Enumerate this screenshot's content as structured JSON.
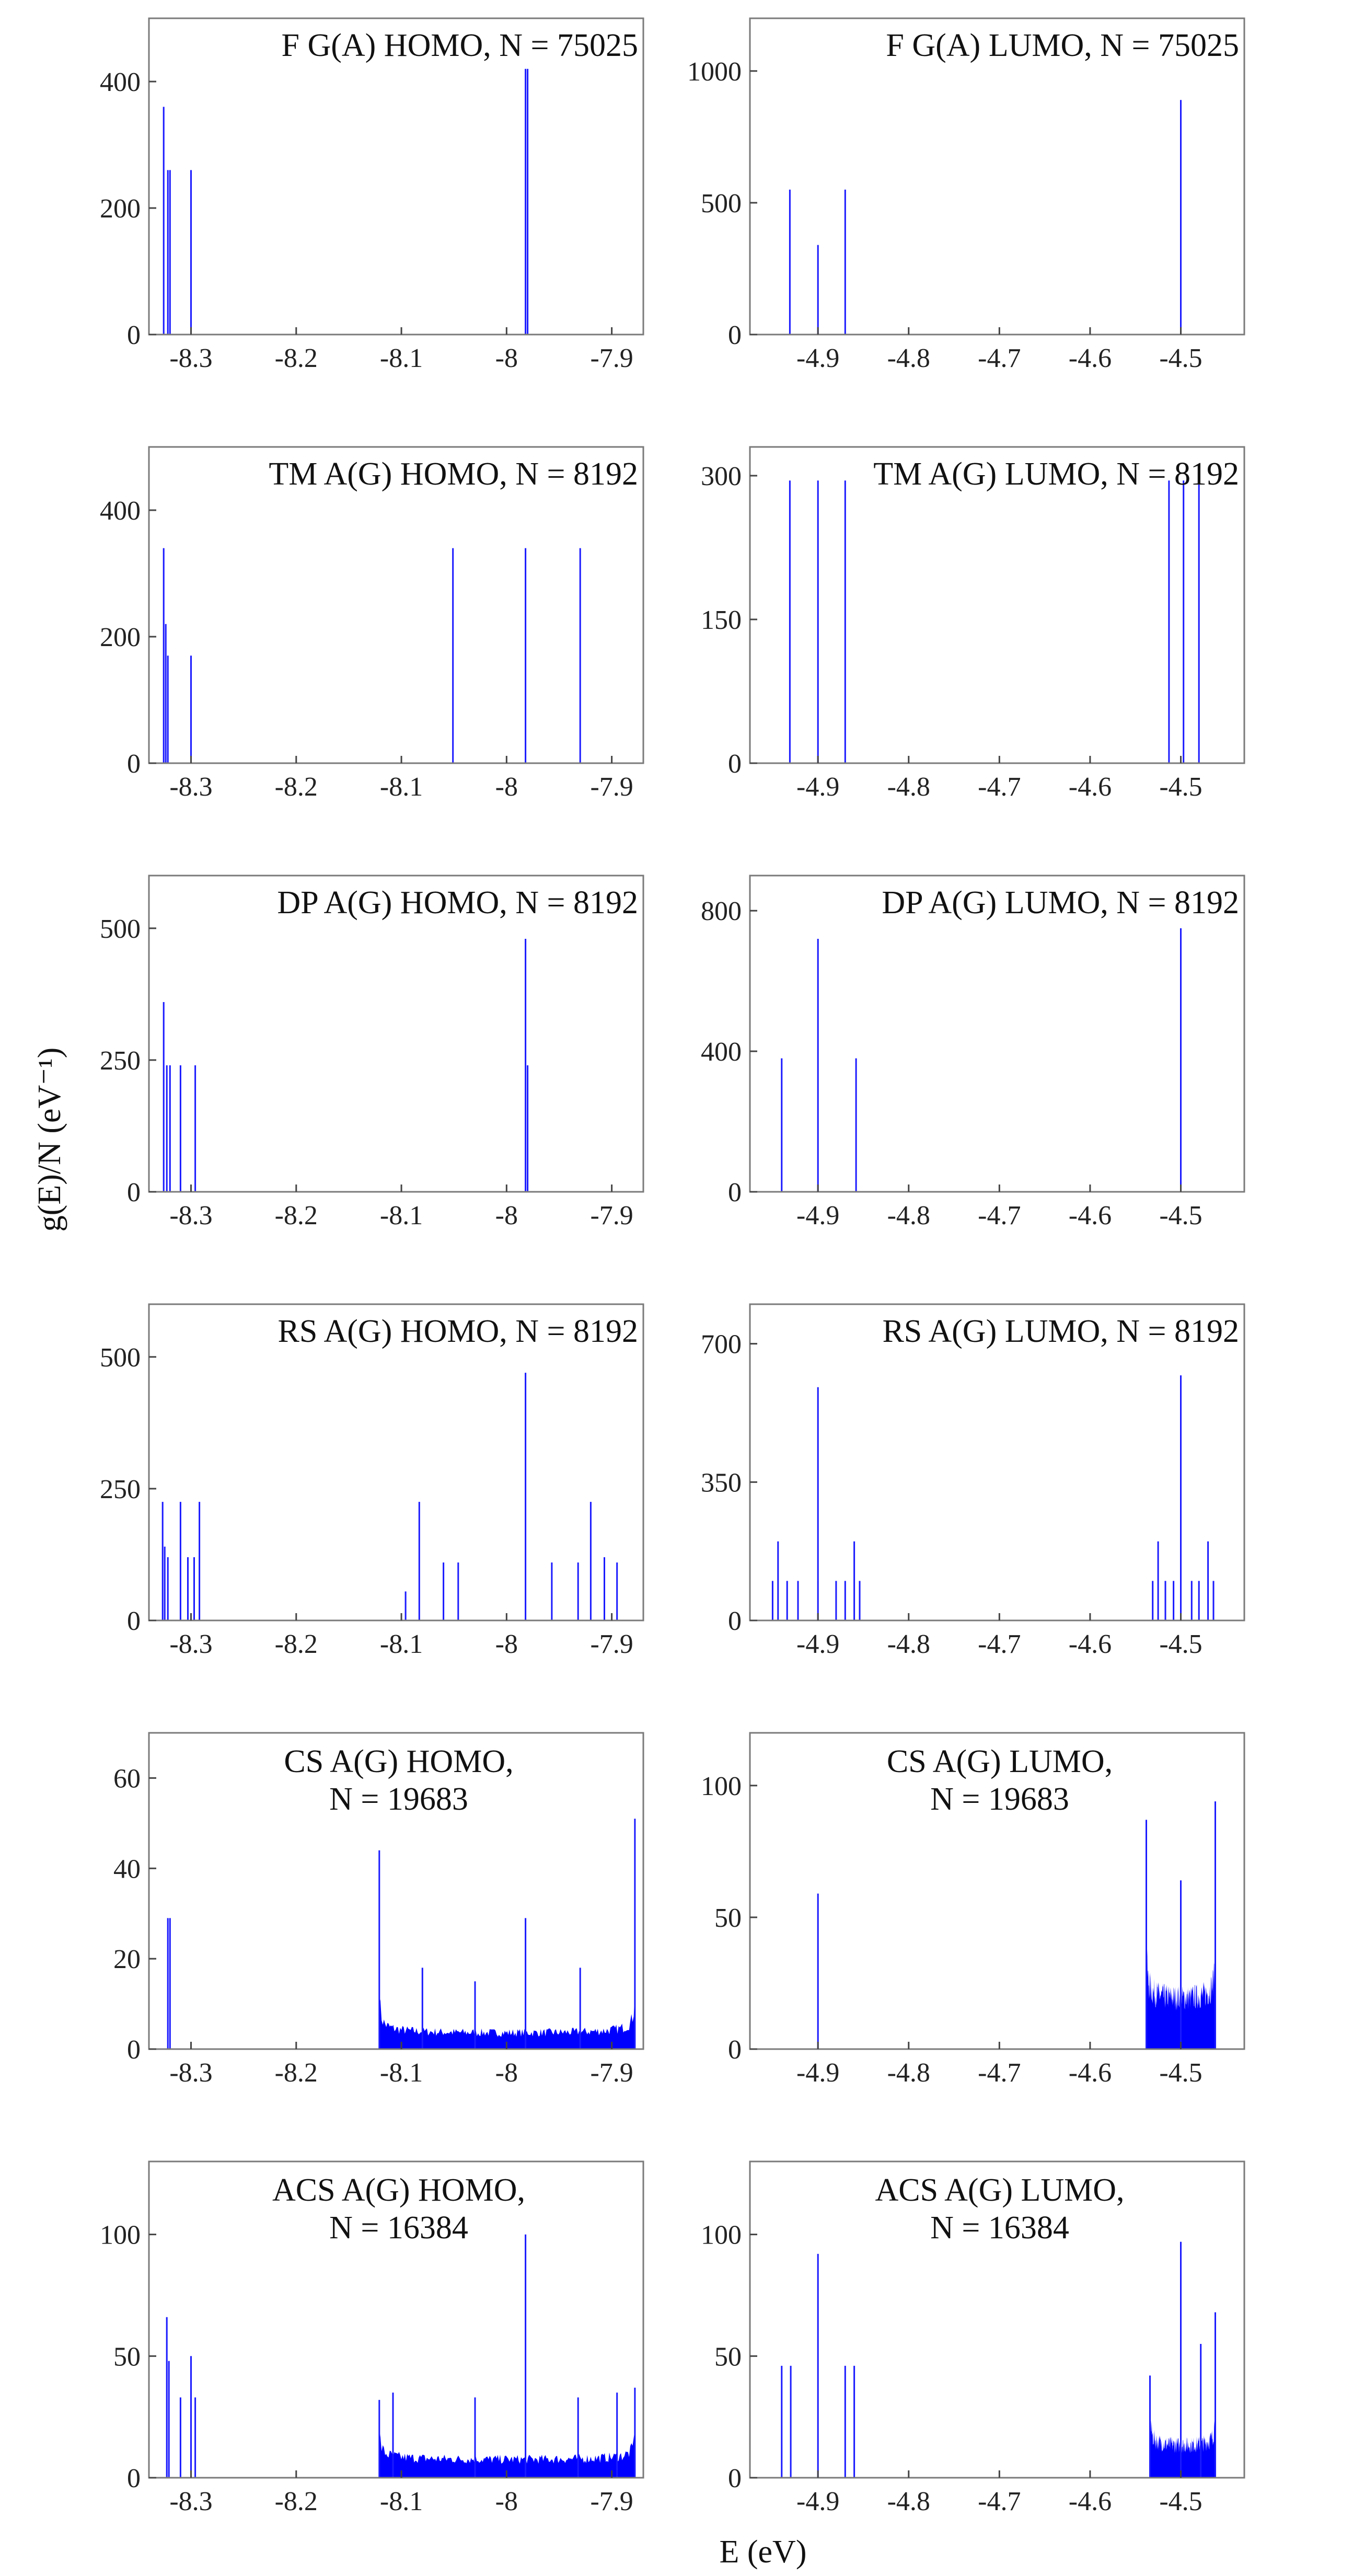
{
  "figure": {
    "ylabel": "g(E)/N (eV⁻¹)",
    "xlabel": "E (eV)",
    "colors": {
      "trace": "#0000ff",
      "frame": "#7a7a7a"
    }
  },
  "chart_data": [
    {
      "type": "bar",
      "title": [
        "F G(A) HOMO, N = 75025"
      ],
      "xlim": [
        -8.34,
        -7.87
      ],
      "ylim": [
        0,
        500
      ],
      "xticks": [
        -8.3,
        -8.2,
        -8.1,
        -8.0,
        -7.9
      ],
      "xtick_labels": [
        "-8.3",
        "-8.2",
        "-8.1",
        "-8",
        "-7.9"
      ],
      "yticks": [
        0,
        200,
        400
      ],
      "x": [
        -8.326,
        -8.322,
        -8.32,
        -8.3,
        -7.982,
        -7.98
      ],
      "values": [
        360,
        260,
        260,
        260,
        420,
        420
      ]
    },
    {
      "type": "bar",
      "title": [
        "F G(A) LUMO, N = 75025"
      ],
      "xlim": [
        -4.975,
        -4.43
      ],
      "ylim": [
        0,
        1200
      ],
      "xticks": [
        -4.9,
        -4.8,
        -4.7,
        -4.6,
        -4.5
      ],
      "xtick_labels": [
        "-4.9",
        "-4.8",
        "-4.7",
        "-4.6",
        "-4.5"
      ],
      "yticks": [
        0,
        500,
        1000
      ],
      "x": [
        -4.931,
        -4.9,
        -4.87,
        -4.5
      ],
      "values": [
        550,
        340,
        550,
        890
      ]
    },
    {
      "type": "bar",
      "title": [
        "TM A(G) HOMO, N = 8192"
      ],
      "xlim": [
        -8.34,
        -7.87
      ],
      "ylim": [
        0,
        500
      ],
      "xticks": [
        -8.3,
        -8.2,
        -8.1,
        -8.0,
        -7.9
      ],
      "xtick_labels": [
        "-8.3",
        "-8.2",
        "-8.1",
        "-8",
        "-7.9"
      ],
      "yticks": [
        0,
        200,
        400
      ],
      "x": [
        -8.326,
        -8.324,
        -8.322,
        -8.3,
        -8.051,
        -7.982,
        -7.93
      ],
      "values": [
        340,
        220,
        170,
        170,
        340,
        340,
        340
      ]
    },
    {
      "type": "bar",
      "title": [
        "TM A(G) LUMO, N = 8192"
      ],
      "xlim": [
        -4.975,
        -4.43
      ],
      "ylim": [
        0,
        330
      ],
      "xticks": [
        -4.9,
        -4.8,
        -4.7,
        -4.6,
        -4.5
      ],
      "xtick_labels": [
        "-4.9",
        "-4.8",
        "-4.7",
        "-4.6",
        "-4.5"
      ],
      "yticks": [
        0,
        150,
        300
      ],
      "x": [
        -4.931,
        -4.9,
        -4.87,
        -4.513,
        -4.497,
        -4.48
      ],
      "values": [
        295,
        295,
        295,
        295,
        295,
        295
      ]
    },
    {
      "type": "bar",
      "title": [
        "DP A(G) HOMO, N = 8192"
      ],
      "xlim": [
        -8.34,
        -7.87
      ],
      "ylim": [
        0,
        600
      ],
      "xticks": [
        -8.3,
        -8.2,
        -8.1,
        -8.0,
        -7.9
      ],
      "xtick_labels": [
        "-8.3",
        "-8.2",
        "-8.1",
        "-8",
        "-7.9"
      ],
      "yticks": [
        0,
        250,
        500
      ],
      "x": [
        -8.326,
        -8.323,
        -8.32,
        -8.31,
        -8.296,
        -7.982,
        -7.98
      ],
      "values": [
        360,
        240,
        240,
        240,
        240,
        480,
        240
      ]
    },
    {
      "type": "bar",
      "title": [
        "DP A(G) LUMO, N = 8192"
      ],
      "xlim": [
        -4.975,
        -4.43
      ],
      "ylim": [
        0,
        900
      ],
      "xticks": [
        -4.9,
        -4.8,
        -4.7,
        -4.6,
        -4.5
      ],
      "xtick_labels": [
        "-4.9",
        "-4.8",
        "-4.7",
        "-4.6",
        "-4.5"
      ],
      "yticks": [
        0,
        400,
        800
      ],
      "x": [
        -4.94,
        -4.9,
        -4.858,
        -4.5
      ],
      "values": [
        380,
        720,
        380,
        750
      ]
    },
    {
      "type": "bar",
      "title": [
        "RS A(G) HOMO, N = 8192"
      ],
      "xlim": [
        -8.34,
        -7.87
      ],
      "ylim": [
        0,
        600
      ],
      "xticks": [
        -8.3,
        -8.2,
        -8.1,
        -8.0,
        -7.9
      ],
      "xtick_labels": [
        "-8.3",
        "-8.2",
        "-8.1",
        "-8",
        "-7.9"
      ],
      "yticks": [
        0,
        250,
        500
      ],
      "x": [
        -8.327,
        -8.325,
        -8.322,
        -8.31,
        -8.303,
        -8.297,
        -8.292,
        -8.096,
        -8.083,
        -8.06,
        -8.046,
        -7.982,
        -7.957,
        -7.932,
        -7.92,
        -7.907,
        -7.895
      ],
      "values": [
        225,
        140,
        120,
        225,
        120,
        120,
        225,
        55,
        225,
        110,
        110,
        470,
        110,
        110,
        225,
        120,
        110
      ]
    },
    {
      "type": "bar",
      "title": [
        "RS A(G) LUMO, N = 8192"
      ],
      "xlim": [
        -4.975,
        -4.43
      ],
      "ylim": [
        0,
        800
      ],
      "xticks": [
        -4.9,
        -4.8,
        -4.7,
        -4.6,
        -4.5
      ],
      "xtick_labels": [
        "-4.9",
        "-4.8",
        "-4.7",
        "-4.6",
        "-4.5"
      ],
      "yticks": [
        0,
        350,
        700
      ],
      "x": [
        -4.95,
        -4.944,
        -4.934,
        -4.922,
        -4.9,
        -4.88,
        -4.87,
        -4.86,
        -4.854,
        -4.531,
        -4.525,
        -4.517,
        -4.508,
        -4.5,
        -4.488,
        -4.48,
        -4.47,
        -4.464
      ],
      "values": [
        100,
        200,
        100,
        100,
        590,
        100,
        100,
        200,
        100,
        100,
        200,
        100,
        100,
        620,
        100,
        100,
        200,
        100
      ]
    },
    {
      "type": "area",
      "title": [
        "CS A(G) HOMO,",
        "N = 19683"
      ],
      "xlim": [
        -8.34,
        -7.87
      ],
      "ylim": [
        0,
        70
      ],
      "xticks": [
        -8.3,
        -8.2,
        -8.1,
        -8.0,
        -7.9
      ],
      "xtick_labels": [
        "-8.3",
        "-8.2",
        "-8.1",
        "-8",
        "-7.9"
      ],
      "yticks": [
        0,
        20,
        40,
        60
      ],
      "band": {
        "from": -8.121,
        "to": -7.878,
        "edge": 10,
        "floor": 2.5
      },
      "x": [
        -8.322,
        -8.32,
        -8.121,
        -8.08,
        -8.03,
        -7.982,
        -7.93,
        -7.878
      ],
      "values": [
        29,
        29,
        44,
        18,
        15,
        29,
        18,
        51
      ]
    },
    {
      "type": "area",
      "title": [
        "CS A(G) LUMO,",
        "N = 19683"
      ],
      "xlim": [
        -4.975,
        -4.43
      ],
      "ylim": [
        0,
        120
      ],
      "xticks": [
        -4.9,
        -4.8,
        -4.7,
        -4.6,
        -4.5
      ],
      "xtick_labels": [
        "-4.9",
        "-4.8",
        "-4.7",
        "-4.6",
        "-4.5"
      ],
      "yticks": [
        0,
        50,
        100
      ],
      "band": {
        "from": -4.538,
        "to": -4.462,
        "edge": 40,
        "floor": 15
      },
      "x": [
        -4.9,
        -4.538,
        -4.5,
        -4.462
      ],
      "values": [
        59,
        87,
        64,
        94
      ]
    },
    {
      "type": "area",
      "title": [
        "ACS A(G) HOMO,",
        "N = 16384"
      ],
      "xlim": [
        -8.34,
        -7.87
      ],
      "ylim": [
        0,
        130
      ],
      "xticks": [
        -8.3,
        -8.2,
        -8.1,
        -8.0,
        -7.9
      ],
      "xtick_labels": [
        "-8.3",
        "-8.2",
        "-8.1",
        "-8",
        "-7.9"
      ],
      "yticks": [
        0,
        50,
        100
      ],
      "band": {
        "from": -8.121,
        "to": -7.878,
        "edge": 14,
        "floor": 6
      },
      "x": [
        -8.323,
        -8.321,
        -8.31,
        -8.3,
        -8.296,
        -8.121,
        -8.108,
        -8.03,
        -7.982,
        -7.932,
        -7.895,
        -7.878
      ],
      "values": [
        66,
        48,
        33,
        50,
        33,
        32,
        35,
        33,
        100,
        33,
        35,
        37
      ]
    },
    {
      "type": "area",
      "title": [
        "ACS A(G) LUMO,",
        "N = 16384"
      ],
      "xlim": [
        -4.975,
        -4.43
      ],
      "ylim": [
        0,
        130
      ],
      "xticks": [
        -4.9,
        -4.8,
        -4.7,
        -4.6,
        -4.5
      ],
      "xtick_labels": [
        "-4.9",
        "-4.8",
        "-4.7",
        "-4.6",
        "-4.5"
      ],
      "yticks": [
        0,
        50,
        100
      ],
      "band": {
        "from": -4.534,
        "to": -4.462,
        "edge": 30,
        "floor": 10
      },
      "x": [
        -4.94,
        -4.93,
        -4.9,
        -4.87,
        -4.86,
        -4.534,
        -4.5,
        -4.478,
        -4.462
      ],
      "values": [
        46,
        46,
        92,
        46,
        46,
        42,
        97,
        55,
        68
      ]
    }
  ]
}
